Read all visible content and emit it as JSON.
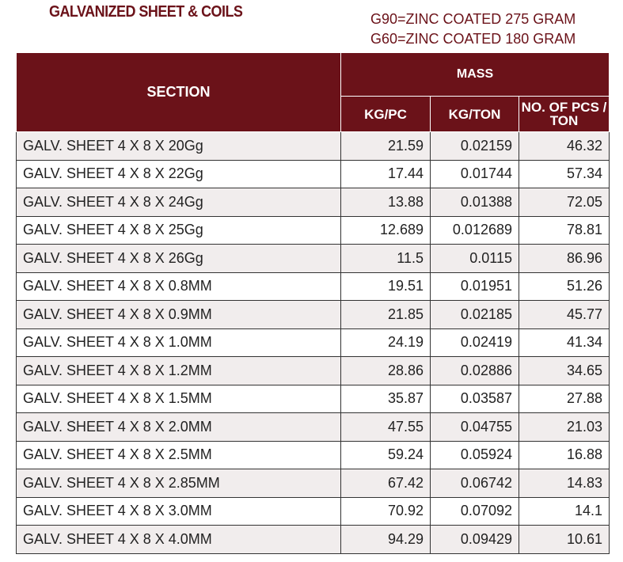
{
  "header": {
    "title": "GALVANIZED SHEET & COILS",
    "notes": [
      "G90=ZINC COATED 275 GRAM",
      "G60=ZINC COATED 180 GRAM"
    ]
  },
  "table": {
    "columns": {
      "section": "SECTION",
      "group": "MASS",
      "sub": [
        "KG/PC",
        "KG/TON",
        "NO. OF PCS / TON"
      ]
    },
    "rows": [
      [
        "GALV. SHEET 4 X 8 X 20Gg",
        "21.59",
        "0.02159",
        "46.32"
      ],
      [
        "GALV. SHEET 4 X 8 X 22Gg",
        "17.44",
        "0.01744",
        "57.34"
      ],
      [
        "GALV. SHEET 4 X 8 X 24Gg",
        "13.88",
        "0.01388",
        "72.05"
      ],
      [
        "GALV. SHEET 4 X 8 X 25Gg",
        "12.689",
        "0.012689",
        "78.81"
      ],
      [
        "GALV. SHEET 4 X 8 X 26Gg",
        "11.5",
        "0.0115",
        "86.96"
      ],
      [
        "GALV. SHEET 4 X 8 X 0.8MM",
        "19.51",
        "0.01951",
        "51.26"
      ],
      [
        "GALV. SHEET 4 X 8 X 0.9MM",
        "21.85",
        "0.02185",
        "45.77"
      ],
      [
        "GALV. SHEET 4 X 8 X 1.0MM",
        "24.19",
        "0.02419",
        "41.34"
      ],
      [
        "GALV. SHEET 4 X 8 X 1.2MM",
        "28.86",
        "0.02886",
        "34.65"
      ],
      [
        "GALV. SHEET 4 X 8 X 1.5MM",
        "35.87",
        "0.03587",
        "27.88"
      ],
      [
        "GALV. SHEET 4 X 8 X 2.0MM",
        "47.55",
        "0.04755",
        "21.03"
      ],
      [
        "GALV. SHEET 4 X 8 X 2.5MM",
        "59.24",
        "0.05924",
        "16.88"
      ],
      [
        "GALV. SHEET 4 X 8 X 2.85MM",
        "67.42",
        "0.06742",
        "14.83"
      ],
      [
        "GALV. SHEET 4 X 8 X 3.0MM",
        "70.92",
        "0.07092",
        "14.1"
      ],
      [
        "GALV. SHEET 4 X 8 X 4.0MM",
        "94.29",
        "0.09429",
        "10.61"
      ]
    ]
  }
}
